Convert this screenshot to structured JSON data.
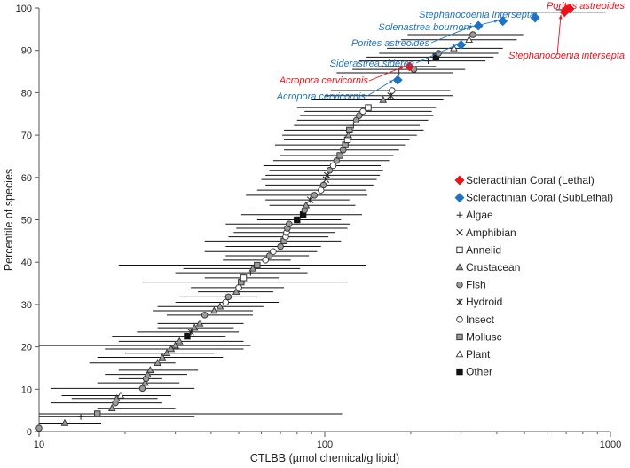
{
  "chart_data": {
    "type": "scatter",
    "xscale": "log",
    "xlim": [
      10,
      1000
    ],
    "ylim": [
      0,
      100
    ],
    "xlabel": "CTLBB (µmol chemical/g lipid)",
    "ylabel": "Percentile of species",
    "x_ticks": [
      "10",
      "100",
      "1000"
    ],
    "y_ticks": [
      "0",
      "10",
      "20",
      "30",
      "40",
      "50",
      "60",
      "70",
      "80",
      "90",
      "100"
    ],
    "grid": false,
    "legend_position": "right",
    "colors": {
      "lethal": "#e8141c",
      "sublethal": "#1f73c0",
      "mark": "#222222",
      "grey_fill": "#9a9a9a",
      "grid": "#555555"
    },
    "legend": [
      {
        "name": "Scleractinian Coral (Lethal)",
        "marker": "diamond-red"
      },
      {
        "name": "Scleractinian Coral (SubLethal)",
        "marker": "diamond-blue"
      },
      {
        "name": "Algae",
        "marker": "plus"
      },
      {
        "name": "Amphibian",
        "marker": "x"
      },
      {
        "name": "Annelid",
        "marker": "square-open"
      },
      {
        "name": "Crustacean",
        "marker": "triangle-grey"
      },
      {
        "name": "Fish",
        "marker": "circle-grey"
      },
      {
        "name": "Hydroid",
        "marker": "star"
      },
      {
        "name": "Insect",
        "marker": "circle-open"
      },
      {
        "name": "Mollusc",
        "marker": "square-grey"
      },
      {
        "name": "Plant",
        "marker": "triangle-open"
      },
      {
        "name": "Other",
        "marker": "square-black"
      }
    ],
    "species_points": [
      {
        "x": 10,
        "lo": 10,
        "hi": 10,
        "p": 0.8,
        "m": "circle-grey"
      },
      {
        "x": 12.3,
        "lo": 10,
        "hi": 16.5,
        "p": 2.0,
        "m": "triangle-grey"
      },
      {
        "x": 14,
        "lo": 10,
        "hi": 35,
        "p": 3.5,
        "m": "plus"
      },
      {
        "x": 16,
        "lo": 10,
        "hi": 115,
        "p": 4.2,
        "m": "square-grey"
      },
      {
        "x": 18,
        "lo": 16,
        "hi": 30,
        "p": 5.5,
        "m": "triangle-grey"
      },
      {
        "x": 18.5,
        "lo": 11,
        "hi": 27,
        "p": 6.8,
        "m": "circle-grey"
      },
      {
        "x": 18.7,
        "lo": 13,
        "hi": 26,
        "p": 7.8,
        "m": "triangle-grey"
      },
      {
        "x": 19.3,
        "lo": 12,
        "hi": 29,
        "p": 8.5,
        "m": "triangle-open"
      },
      {
        "x": 23,
        "lo": 11,
        "hi": 35,
        "p": 10.2,
        "m": "circle-grey"
      },
      {
        "x": 23.5,
        "lo": 16,
        "hi": 31,
        "p": 11.5,
        "m": "triangle-grey"
      },
      {
        "x": 23.7,
        "lo": 19,
        "hi": 27,
        "p": 12.5,
        "m": "circle-grey"
      },
      {
        "x": 24,
        "lo": 17,
        "hi": 33,
        "p": 13.5,
        "m": "triangle-grey"
      },
      {
        "x": 24.5,
        "lo": 19,
        "hi": 36,
        "p": 14.5,
        "m": "triangle-grey"
      },
      {
        "x": 26,
        "lo": 15,
        "hi": 30,
        "p": 16.2,
        "m": "triangle-grey"
      },
      {
        "x": 27,
        "lo": 16,
        "hi": 44,
        "p": 17.5,
        "m": "triangle-grey"
      },
      {
        "x": 28,
        "lo": 20,
        "hi": 41,
        "p": 18.5,
        "m": "triangle-grey"
      },
      {
        "x": 29,
        "lo": 17,
        "hi": 52,
        "p": 19.5,
        "m": "triangle-grey"
      },
      {
        "x": 30,
        "lo": 10,
        "hi": 55,
        "p": 20.3,
        "m": "triangle-grey"
      },
      {
        "x": 31,
        "lo": 19,
        "hi": 52,
        "p": 21.3,
        "m": "triangle-grey"
      },
      {
        "x": 33,
        "lo": 18,
        "hi": 45,
        "p": 22.5,
        "m": "square-black"
      },
      {
        "x": 34,
        "lo": 22,
        "hi": 50,
        "p": 23.5,
        "m": "star"
      },
      {
        "x": 35,
        "lo": 26,
        "hi": 48,
        "p": 24.5,
        "m": "triangle-grey"
      },
      {
        "x": 36.5,
        "lo": 26,
        "hi": 52,
        "p": 25.5,
        "m": "triangle-grey"
      },
      {
        "x": 38,
        "lo": 28,
        "hi": 56,
        "p": 27.5,
        "m": "circle-grey"
      },
      {
        "x": 41,
        "lo": 25,
        "hi": 56,
        "p": 28.5,
        "m": "triangle-grey"
      },
      {
        "x": 43,
        "lo": 26,
        "hi": 61,
        "p": 29.5,
        "m": "triangle-grey"
      },
      {
        "x": 45,
        "lo": 30,
        "hi": 69,
        "p": 30.5,
        "m": "circle-open"
      },
      {
        "x": 46,
        "lo": 31,
        "hi": 58,
        "p": 31.8,
        "m": "circle-grey"
      },
      {
        "x": 49,
        "lo": 36,
        "hi": 66,
        "p": 33.0,
        "m": "triangle-grey"
      },
      {
        "x": 50,
        "lo": 34,
        "hi": 72,
        "p": 34.0,
        "m": "circle-open"
      },
      {
        "x": 51,
        "lo": 23,
        "hi": 120,
        "p": 35.3,
        "m": "square-grey"
      },
      {
        "x": 52,
        "lo": 38,
        "hi": 69,
        "p": 36.3,
        "m": "square-open"
      },
      {
        "x": 55,
        "lo": 30,
        "hi": 87,
        "p": 37.5,
        "m": "plus"
      },
      {
        "x": 56,
        "lo": 32,
        "hi": 82,
        "p": 38.5,
        "m": "triangle-grey"
      },
      {
        "x": 58,
        "lo": 19,
        "hi": 140,
        "p": 39.3,
        "m": "square-grey"
      },
      {
        "x": 62,
        "lo": 44,
        "hi": 76,
        "p": 40.5,
        "m": "circle-open"
      },
      {
        "x": 64,
        "lo": 45,
        "hi": 88,
        "p": 41.5,
        "m": "circle-grey"
      },
      {
        "x": 66,
        "lo": 38,
        "hi": 94,
        "p": 42.5,
        "m": "circle-open"
      },
      {
        "x": 70,
        "lo": 45,
        "hi": 97,
        "p": 43.7,
        "m": "circle-grey"
      },
      {
        "x": 72,
        "lo": 38,
        "hi": 114,
        "p": 45.0,
        "m": "square-grey"
      },
      {
        "x": 73,
        "lo": 46,
        "hi": 103,
        "p": 46.0,
        "m": "circle-open"
      },
      {
        "x": 73.5,
        "lo": 48,
        "hi": 109,
        "p": 47.0,
        "m": "circle-open"
      },
      {
        "x": 74,
        "lo": 49,
        "hi": 120,
        "p": 48.0,
        "m": "circle-grey"
      },
      {
        "x": 75,
        "lo": 45,
        "hi": 123,
        "p": 49.0,
        "m": "circle-grey"
      },
      {
        "x": 80,
        "lo": 58,
        "hi": 114,
        "p": 50.0,
        "m": "square-black"
      },
      {
        "x": 84,
        "lo": 51,
        "hi": 135,
        "p": 51.2,
        "m": "square-black"
      },
      {
        "x": 85,
        "lo": 57,
        "hi": 123,
        "p": 52.3,
        "m": "circle-grey"
      },
      {
        "x": 86,
        "lo": 64,
        "hi": 128,
        "p": 53.4,
        "m": "triangle-grey"
      },
      {
        "x": 89,
        "lo": 62,
        "hi": 122,
        "p": 54.7,
        "m": "star"
      },
      {
        "x": 92,
        "lo": 53,
        "hi": 141,
        "p": 55.8,
        "m": "circle-grey"
      },
      {
        "x": 97,
        "lo": 58,
        "hi": 140,
        "p": 57.0,
        "m": "circle-open"
      },
      {
        "x": 99,
        "lo": 62,
        "hi": 148,
        "p": 58.2,
        "m": "circle-grey"
      },
      {
        "x": 101,
        "lo": 60,
        "hi": 152,
        "p": 59.5,
        "m": "x"
      },
      {
        "x": 102,
        "lo": 62,
        "hi": 156,
        "p": 60.5,
        "m": "star"
      },
      {
        "x": 104,
        "lo": 64,
        "hi": 160,
        "p": 61.7,
        "m": "circle-grey"
      },
      {
        "x": 107,
        "lo": 61,
        "hi": 157,
        "p": 62.8,
        "m": "circle-open"
      },
      {
        "x": 110,
        "lo": 66,
        "hi": 168,
        "p": 64.0,
        "m": "circle-grey"
      },
      {
        "x": 113,
        "lo": 70,
        "hi": 174,
        "p": 65.2,
        "m": "square-grey"
      },
      {
        "x": 116,
        "lo": 72,
        "hi": 182,
        "p": 66.5,
        "m": "circle-grey"
      },
      {
        "x": 118,
        "lo": 67,
        "hi": 191,
        "p": 67.7,
        "m": "square-grey"
      },
      {
        "x": 120,
        "lo": 72,
        "hi": 198,
        "p": 68.9,
        "m": "square-open"
      },
      {
        "x": 121,
        "lo": 71,
        "hi": 210,
        "p": 70.0,
        "m": "triangle-grey"
      },
      {
        "x": 122,
        "lo": 72,
        "hi": 222,
        "p": 71.2,
        "m": "square-grey"
      },
      {
        "x": 126,
        "lo": 78,
        "hi": 215,
        "p": 72.3,
        "m": "plus"
      },
      {
        "x": 129,
        "lo": 80,
        "hi": 230,
        "p": 73.5,
        "m": "circle-grey"
      },
      {
        "x": 132,
        "lo": 82,
        "hi": 240,
        "p": 74.6,
        "m": "circle-grey"
      },
      {
        "x": 136,
        "lo": 85,
        "hi": 237,
        "p": 75.6,
        "m": "circle-open"
      },
      {
        "x": 142,
        "lo": 80,
        "hi": 245,
        "p": 76.5,
        "m": "square-open"
      },
      {
        "x": 160,
        "lo": 90,
        "hi": 260,
        "p": 78.3,
        "m": "triangle-grey"
      },
      {
        "x": 170,
        "lo": 100,
        "hi": 280,
        "p": 79.3,
        "m": "star"
      },
      {
        "x": 172,
        "lo": 105,
        "hi": 275,
        "p": 80.5,
        "m": "circle-open"
      },
      {
        "x": 182,
        "lo": 110,
        "hi": 280,
        "p": 84.7,
        "m": "plus"
      },
      {
        "x": 205,
        "lo": 125,
        "hi": 310,
        "p": 85.5,
        "m": "circle-grey"
      },
      {
        "x": 230,
        "lo": 132,
        "hi": 365,
        "p": 87.5,
        "m": "plus"
      },
      {
        "x": 245,
        "lo": 140,
        "hi": 390,
        "p": 88.4,
        "m": "square-black"
      },
      {
        "x": 250,
        "lo": 155,
        "hi": 405,
        "p": 89.3,
        "m": "circle-grey"
      },
      {
        "x": 283,
        "lo": 165,
        "hi": 420,
        "p": 90.5,
        "m": "triangle-open"
      },
      {
        "x": 320,
        "lo": 185,
        "hi": 470,
        "p": 92.5,
        "m": "triangle-open"
      },
      {
        "x": 330,
        "lo": 195,
        "hi": 495,
        "p": 93.7,
        "m": "circle-grey"
      }
    ],
    "coral_points": [
      {
        "label": "Porites astreoides",
        "kind": "lethal",
        "x": 700,
        "lo": 645,
        "hi": 690,
        "p": 99.6
      },
      {
        "label": "Stephanocoenia intersepta",
        "kind": "lethal",
        "x": 690,
        "lo": 410,
        "hi": 960,
        "p": 99.0
      },
      {
        "label": "Acropora cervicornis",
        "kind": "lethal",
        "x": 198,
        "lo": 155,
        "hi": 245,
        "p": 86.2
      },
      {
        "label": "Stephanocoenia intersepta",
        "kind": "sublethal",
        "x": 545,
        "lo": 540,
        "hi": 550,
        "p": 97.7
      },
      {
        "label": "Solenastrea bournoni",
        "kind": "sublethal",
        "x": 420,
        "lo": 415,
        "hi": 425,
        "p": 96.9
      },
      {
        "label": "Porites astreoides",
        "kind": "sublethal",
        "x": 345,
        "lo": 340,
        "hi": 350,
        "p": 95.8
      },
      {
        "label": "Siderastrea siderea",
        "kind": "sublethal",
        "x": 300,
        "lo": 295,
        "hi": 305,
        "p": 91.3
      },
      {
        "label": "Acropora cervicornis",
        "kind": "sublethal",
        "x": 180,
        "lo": 176,
        "hi": 184,
        "p": 83.0
      }
    ]
  }
}
